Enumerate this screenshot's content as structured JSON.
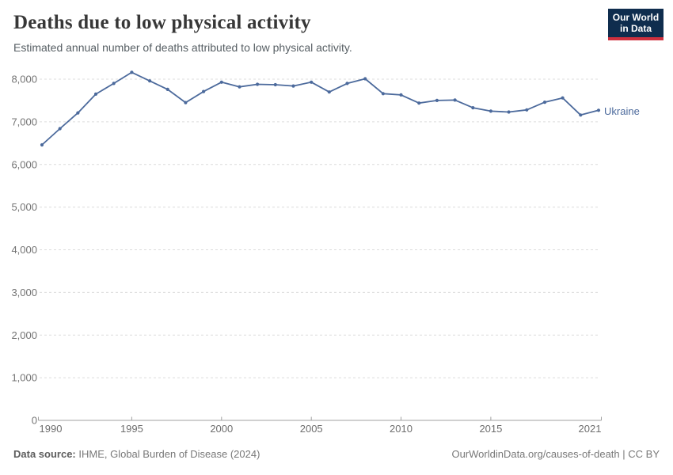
{
  "header": {
    "title": "Deaths due to low physical activity",
    "subtitle": "Estimated annual number of deaths attributed to low physical activity.",
    "logo": {
      "line1": "Our World",
      "line2": "in Data",
      "bg_color": "#0f2d4e",
      "stripe_color": "#cf303e"
    }
  },
  "chart_data": {
    "type": "line",
    "title": "Deaths due to low physical activity",
    "xlabel": "",
    "ylabel": "",
    "xlim": [
      1990,
      2021
    ],
    "ylim": [
      0,
      8000
    ],
    "grid": "horizontal-dashed",
    "legend_position": "end-of-line-label",
    "x": [
      1990,
      1991,
      1992,
      1993,
      1994,
      1995,
      1996,
      1997,
      1998,
      1999,
      2000,
      2001,
      2002,
      2003,
      2004,
      2005,
      2006,
      2007,
      2008,
      2009,
      2010,
      2011,
      2012,
      2013,
      2014,
      2015,
      2016,
      2017,
      2018,
      2019,
      2020,
      2021
    ],
    "series": [
      {
        "name": "Ukraine",
        "color": "#4C6A9C",
        "values": [
          6460,
          6840,
          7210,
          7650,
          7900,
          8160,
          7960,
          7760,
          7450,
          7710,
          7930,
          7820,
          7880,
          7870,
          7840,
          7930,
          7700,
          7900,
          8010,
          7660,
          7630,
          7440,
          7500,
          7510,
          7330,
          7250,
          7230,
          7280,
          7460,
          7560,
          7160,
          7270
        ]
      }
    ],
    "x_tick_years": [
      1990,
      1995,
      2000,
      2005,
      2010,
      2015,
      2021
    ],
    "x_tick_labels": [
      "1990",
      "1995",
      "2000",
      "2005",
      "2010",
      "2015",
      "2021"
    ],
    "y_tick_values": [
      0,
      1000,
      2000,
      3000,
      4000,
      5000,
      6000,
      7000,
      8000
    ],
    "y_tick_labels": [
      "0",
      "1,000",
      "2,000",
      "3,000",
      "4,000",
      "5,000",
      "6,000",
      "7,000",
      "8,000"
    ],
    "axis_color": "#a1a1a1",
    "grid_color": "#dcdcdc",
    "tick_label_color": "#6e6e6e"
  },
  "footer": {
    "source_label": "Data source:",
    "source_value": "IHME, Global Burden of Disease (2024)",
    "url": "OurWorldinData.org/causes-of-death",
    "license": "| CC BY"
  }
}
